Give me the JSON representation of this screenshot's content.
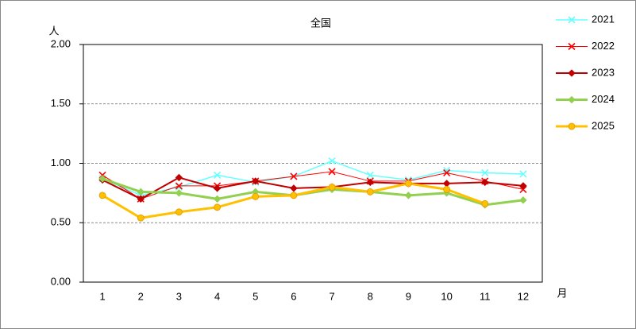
{
  "chart_data": {
    "type": "line",
    "title": "全国",
    "y_label": "人",
    "x_label": "月",
    "categories": [
      "1",
      "2",
      "3",
      "4",
      "5",
      "6",
      "7",
      "8",
      "9",
      "10",
      "11",
      "12"
    ],
    "series": [
      {
        "name": "2021",
        "color": "#66ffff",
        "marker": "x",
        "values": [
          0.87,
          0.73,
          0.8,
          0.9,
          0.84,
          0.89,
          1.02,
          0.9,
          0.86,
          0.94,
          0.92,
          0.91
        ]
      },
      {
        "name": "2022",
        "color": "#ff0000",
        "marker": "x",
        "values": [
          0.9,
          0.7,
          0.81,
          0.81,
          0.85,
          0.89,
          0.93,
          0.85,
          0.85,
          0.92,
          0.85,
          0.78
        ]
      },
      {
        "name": "2023",
        "color": "#c00000",
        "marker": "diamond",
        "values": [
          0.86,
          0.7,
          0.88,
          0.79,
          0.85,
          0.79,
          0.8,
          0.84,
          0.83,
          0.83,
          0.84,
          0.81
        ]
      },
      {
        "name": "2024",
        "color": "#92d050",
        "marker": "diamond",
        "values": [
          0.87,
          0.76,
          0.75,
          0.7,
          0.76,
          0.73,
          0.78,
          0.76,
          0.73,
          0.75,
          0.65,
          0.69
        ]
      },
      {
        "name": "2025",
        "color": "#ffc000",
        "marker": "circle",
        "values": [
          0.73,
          0.54,
          0.59,
          0.63,
          0.72,
          0.73,
          0.8,
          0.76,
          0.83,
          0.78,
          0.66,
          null
        ]
      }
    ],
    "ylim": [
      0,
      2
    ],
    "yticks": [
      {
        "value": 0,
        "label": "0.00"
      },
      {
        "value": 0.5,
        "label": "0.50"
      },
      {
        "value": 1,
        "label": "1.00"
      },
      {
        "value": 1.5,
        "label": "1.50"
      },
      {
        "value": 2,
        "label": "2.00"
      }
    ],
    "grid": true,
    "legend": "right"
  }
}
